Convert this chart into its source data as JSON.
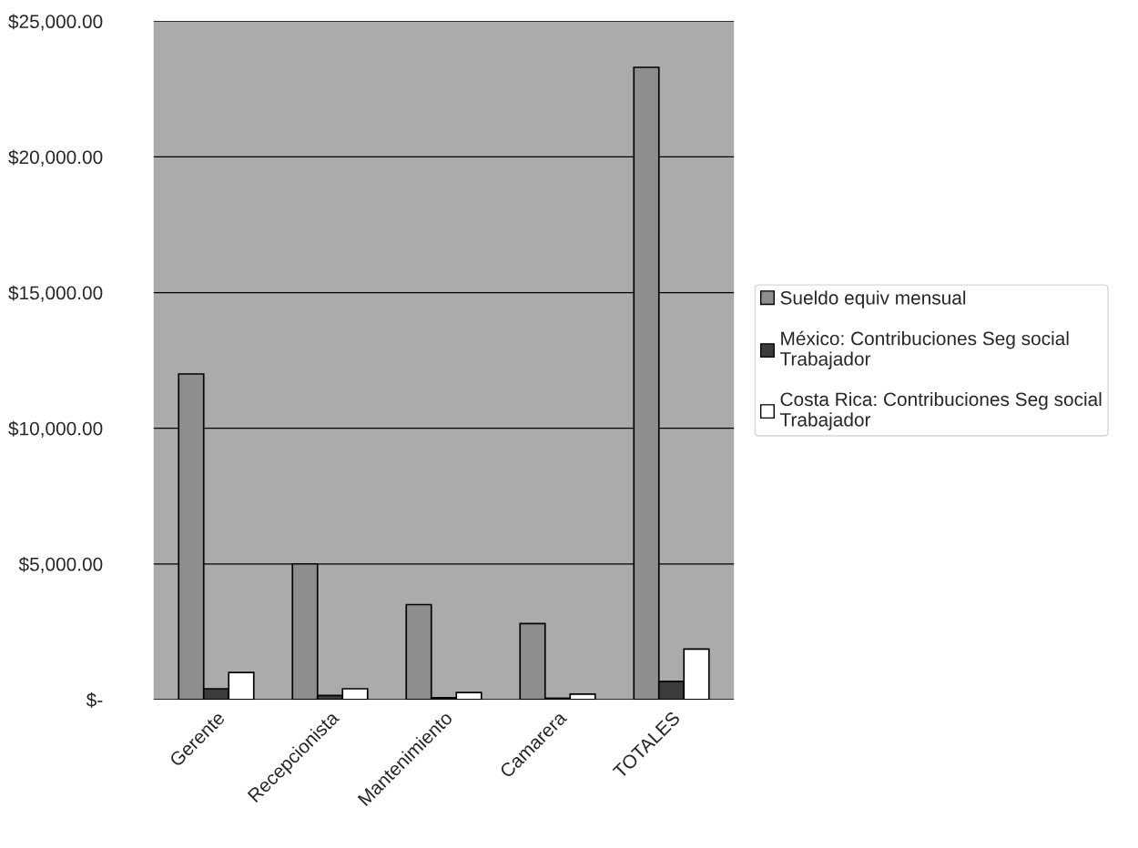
{
  "chart_data": {
    "type": "bar",
    "categories": [
      "Gerente",
      "Recepcionista",
      "Mantenimiento",
      "Camarera",
      "TOTALES"
    ],
    "series": [
      {
        "name": "Sueldo equiv mensual",
        "color": "#8e8e8e",
        "values": [
          12000,
          5000,
          3500,
          2800,
          23300
        ]
      },
      {
        "name": "México: Contribuciones Seg social\nTrabajador",
        "color": "#3c3c3c",
        "values": [
          400,
          150,
          70,
          50,
          670
        ]
      },
      {
        "name": "Costa Rica: Contribuciones Seg social\nTrabajador",
        "color": "#ffffff",
        "values": [
          1000,
          400,
          260,
          200,
          1860
        ]
      }
    ],
    "ylim": [
      0,
      25000
    ],
    "yticks": [
      {
        "value": 0,
        "label": "$-"
      },
      {
        "value": 5000,
        "label": "$5,000.00"
      },
      {
        "value": 10000,
        "label": "$10,000.00"
      },
      {
        "value": 15000,
        "label": "$15,000.00"
      },
      {
        "value": 20000,
        "label": "$20,000.00"
      },
      {
        "value": 25000,
        "label": "$25,000.00"
      }
    ],
    "grid": "y",
    "legend": "right"
  }
}
